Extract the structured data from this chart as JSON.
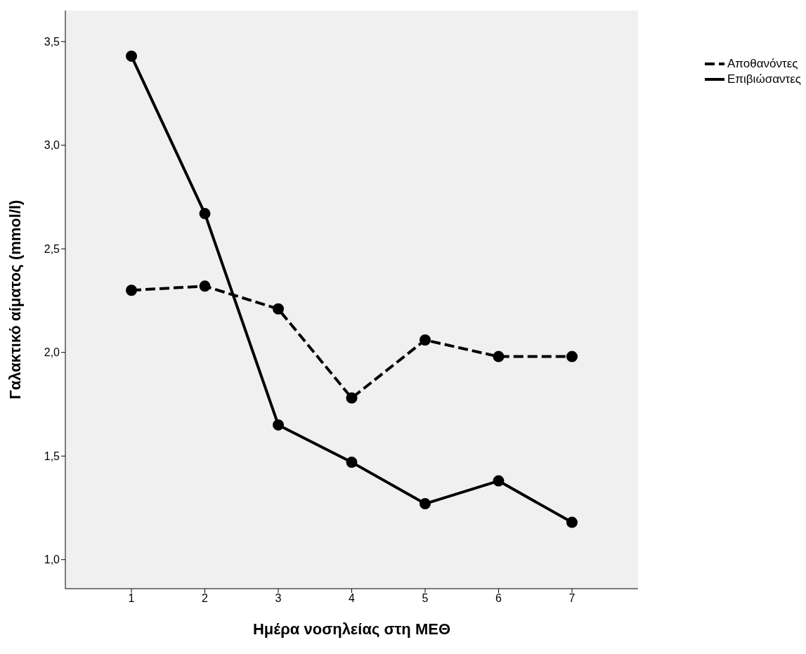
{
  "chart_data": {
    "type": "line",
    "xlabel": "Ημέρα νοσηλείας στη ΜΕΘ",
    "ylabel": "Γαλακτικό αίματος (mmol/l)",
    "x": [
      1,
      2,
      3,
      4,
      5,
      6,
      7
    ],
    "series": [
      {
        "name": "Αποθανόντες",
        "color": "#000000",
        "line_style": "dashed",
        "values": [
          2.3,
          2.32,
          2.21,
          1.78,
          2.06,
          1.98,
          1.98
        ]
      },
      {
        "name": "Επιβιώσαντες",
        "color": "#000000",
        "line_style": "solid",
        "values": [
          3.43,
          2.67,
          1.65,
          1.47,
          1.27,
          1.38,
          1.18
        ]
      }
    ],
    "xlim": [
      0.1,
      7.9
    ],
    "xticks": [
      1,
      2,
      3,
      4,
      5,
      6,
      7
    ],
    "ylim": [
      0.86,
      3.65
    ],
    "yticks": [
      {
        "value": 1.0,
        "label": "1,0"
      },
      {
        "value": 1.5,
        "label": "1,5"
      },
      {
        "value": 2.0,
        "label": "2,0"
      },
      {
        "value": 2.5,
        "label": "2,5"
      },
      {
        "value": 3.0,
        "label": "3,0"
      },
      {
        "value": 3.5,
        "label": "3,5"
      }
    ],
    "grid": false,
    "legend": "top right",
    "marker": "circle"
  }
}
